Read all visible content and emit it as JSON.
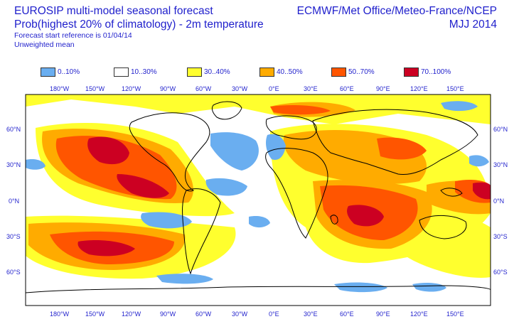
{
  "header": {
    "title_line1": "EUROSIP multi-model seasonal forecast",
    "title_line2": "Prob(highest 20% of climatology) - 2m temperature",
    "reference": "Forecast start reference is 01/04/14",
    "weighting": "Unweighted mean",
    "centres": "ECMWF/Met Office/Meteo-France/NCEP",
    "season": "MJJ 2014"
  },
  "legend": [
    {
      "label": "0..10%",
      "color": "#6aaef0"
    },
    {
      "label": "10..30%",
      "color": "#ffffff"
    },
    {
      "label": "30..40%",
      "color": "#ffff2e"
    },
    {
      "label": "40..50%",
      "color": "#ffab00"
    },
    {
      "label": "50..70%",
      "color": "#ff5500"
    },
    {
      "label": "70..100%",
      "color": "#cc0022"
    }
  ],
  "axes": {
    "lon_ticks": [
      "180°W",
      "150°W",
      "120°W",
      "90°W",
      "60°W",
      "30°W",
      "0°E",
      "30°E",
      "60°E",
      "90°E",
      "120°E",
      "150°E"
    ],
    "lat_ticks": [
      "60°N",
      "30°N",
      "0°N",
      "30°S",
      "60°S"
    ]
  }
}
